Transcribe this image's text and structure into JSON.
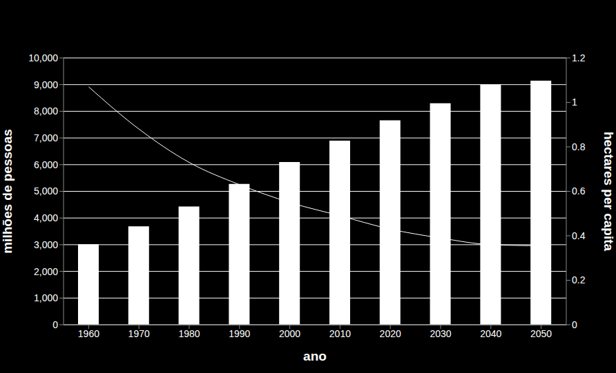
{
  "chart_data": {
    "type": "bar",
    "x_label": "ano",
    "y_label": "milhões de pessoas",
    "y2_label": "hectares per capita",
    "categories": [
      "1960",
      "1970",
      "1980",
      "1990",
      "2000",
      "2010",
      "2020",
      "2030",
      "2040",
      "2050"
    ],
    "series": [
      {
        "name": "milhões de pessoas",
        "type": "bar",
        "color": "#ffffff",
        "values": [
          3020,
          3690,
          4430,
          5280,
          6100,
          6900,
          7660,
          8300,
          9000,
          9150
        ]
      },
      {
        "name": "hectares per capita",
        "type": "line",
        "axis": "y2",
        "color": "#ffffff",
        "marker": "none",
        "values": [
          1.07,
          0.88,
          0.73,
          0.63,
          0.55,
          0.49,
          0.43,
          0.39,
          0.36,
          0.355
        ]
      }
    ],
    "ylim": [
      0,
      10000
    ],
    "yticks": [
      0,
      {
        "value": 1000,
        "label": "1,000"
      },
      {
        "value": 2000,
        "label": "2,000"
      },
      {
        "value": 3000,
        "label": "3,000"
      },
      {
        "value": 4000,
        "label": "4,000"
      },
      {
        "value": 5000,
        "label": "5,000"
      },
      {
        "value": 6000,
        "label": "6,000"
      },
      {
        "value": 7000,
        "label": "7,000"
      },
      {
        "value": 8000,
        "label": "8,000"
      },
      {
        "value": 9000,
        "label": "9,000"
      },
      {
        "value": 10000,
        "label": "10,000"
      }
    ],
    "y2lim": [
      0,
      1.2
    ],
    "y2ticks": [
      0,
      0.2,
      0.4,
      0.6,
      0.8,
      1,
      1.2
    ],
    "grid": true
  }
}
